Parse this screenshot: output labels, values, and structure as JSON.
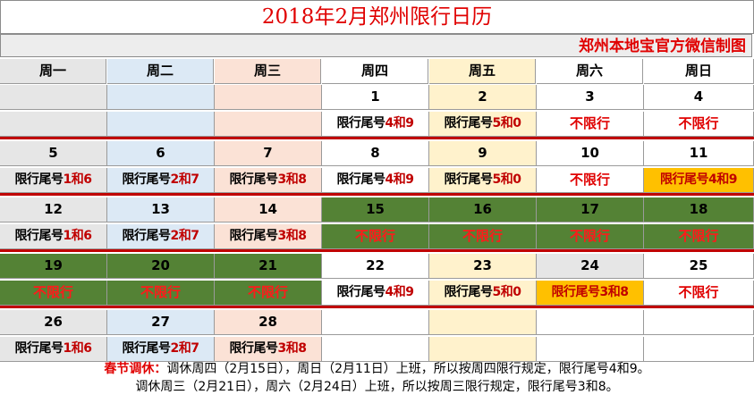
{
  "title": "2018年2月郑州限行日历",
  "credit": "郑州本地宝官方微信制图",
  "weekdays": [
    "周一",
    "周二",
    "周三",
    "周四",
    "周五",
    "周六",
    "周日"
  ],
  "restriction_prefix": "限行尾号",
  "no_restriction_text": "不限行",
  "colors": {
    "title_red": "#e00000",
    "holiday_green": "#548235",
    "adjusted_orange": "#ffc000",
    "mon_blue": "#dce9f5",
    "wed_pink": "#fbe2d6",
    "fri_yellow": "#fff2cc",
    "separator_red": "#c00000"
  },
  "weeks": [
    [
      {
        "day": "",
        "rule": "",
        "bg": "gray"
      },
      {
        "day": "",
        "rule": "",
        "bg": "blue"
      },
      {
        "day": "",
        "rule": "",
        "bg": "pink"
      },
      {
        "day": "1",
        "rule": "4和9",
        "bg": "white"
      },
      {
        "day": "2",
        "rule": "5和0",
        "bg": "yellow"
      },
      {
        "day": "3",
        "rule": "不限行",
        "bg": "white"
      },
      {
        "day": "4",
        "rule": "不限行",
        "bg": "white"
      }
    ],
    [
      {
        "day": "5",
        "rule": "1和6",
        "bg": "gray"
      },
      {
        "day": "6",
        "rule": "2和7",
        "bg": "blue"
      },
      {
        "day": "7",
        "rule": "3和8",
        "bg": "pink"
      },
      {
        "day": "8",
        "rule": "4和9",
        "bg": "white"
      },
      {
        "day": "9",
        "rule": "5和0",
        "bg": "yellow"
      },
      {
        "day": "10",
        "rule": "不限行",
        "bg": "white"
      },
      {
        "day": "11",
        "rule": "4和9",
        "bg": "white",
        "rule_bg": "orange"
      }
    ],
    [
      {
        "day": "12",
        "rule": "1和6",
        "bg": "gray"
      },
      {
        "day": "13",
        "rule": "2和7",
        "bg": "blue"
      },
      {
        "day": "14",
        "rule": "3和8",
        "bg": "pink"
      },
      {
        "day": "15",
        "rule": "不限行",
        "bg": "green"
      },
      {
        "day": "16",
        "rule": "不限行",
        "bg": "green"
      },
      {
        "day": "17",
        "rule": "不限行",
        "bg": "green"
      },
      {
        "day": "18",
        "rule": "不限行",
        "bg": "green"
      }
    ],
    [
      {
        "day": "19",
        "rule": "不限行",
        "bg": "green"
      },
      {
        "day": "20",
        "rule": "不限行",
        "bg": "green"
      },
      {
        "day": "21",
        "rule": "不限行",
        "bg": "green"
      },
      {
        "day": "22",
        "rule": "4和9",
        "bg": "white"
      },
      {
        "day": "23",
        "rule": "5和0",
        "bg": "yellow"
      },
      {
        "day": "24",
        "rule": "3和8",
        "bg": "gray",
        "rule_bg": "orange"
      },
      {
        "day": "25",
        "rule": "不限行",
        "bg": "white"
      }
    ],
    [
      {
        "day": "26",
        "rule": "1和6",
        "bg": "gray"
      },
      {
        "day": "27",
        "rule": "2和7",
        "bg": "blue"
      },
      {
        "day": "28",
        "rule": "3和8",
        "bg": "pink"
      },
      {
        "day": "",
        "rule": "",
        "bg": "white"
      },
      {
        "day": "",
        "rule": "",
        "bg": "yellow"
      },
      {
        "day": "",
        "rule": "",
        "bg": "white"
      },
      {
        "day": "",
        "rule": "",
        "bg": "white"
      }
    ]
  ],
  "note": {
    "lead": "春节调休：",
    "line1": "调休周四（2月15日），周日（2月11日）上班，所以按周四限行规定，限行尾号4和9。",
    "line2": "调休周三（2月21日），周六（2月24日）上班，所以按周三限行规定，限行尾号3和8。"
  }
}
